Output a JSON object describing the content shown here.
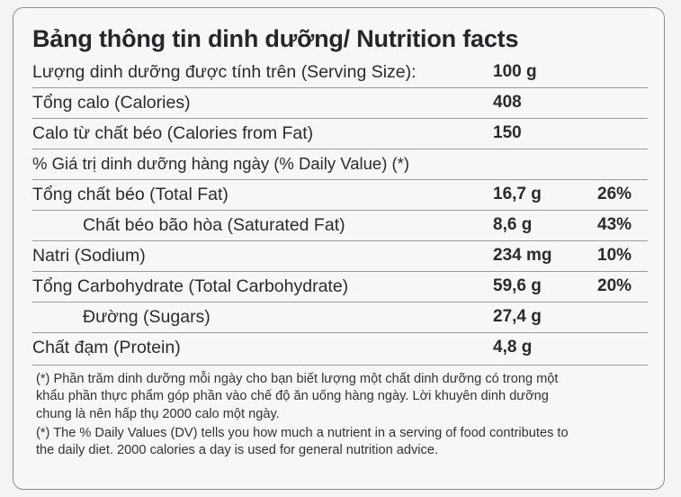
{
  "title": "Bảng thông tin dinh dưỡng/ Nutrition facts",
  "rows": [
    {
      "label": "Lượng dinh dưỡng được tính trên (Serving Size):",
      "value": "100 g",
      "dv": ""
    },
    {
      "label": "Tổng calo (Calories)",
      "value": "408",
      "dv": ""
    },
    {
      "label": "Calo từ chất béo (Calories from Fat)",
      "value": "150",
      "dv": ""
    },
    {
      "label": "% Giá trị dinh dưỡng hàng ngày (% Daily Value) (*)",
      "value": "",
      "dv": ""
    },
    {
      "label": "Tổng chất béo (Total Fat)",
      "value": "16,7 g",
      "dv": "26%"
    },
    {
      "label": "Chất béo bão hòa (Saturated Fat)",
      "value": "8,6 g",
      "dv": "43%"
    },
    {
      "label": "Natri (Sodium)",
      "value": "234 mg",
      "dv": "10%"
    },
    {
      "label": "Tổng Carbohydrate (Total Carbohydrate)",
      "value": "59,6 g",
      "dv": "20%"
    },
    {
      "label": "Đường (Sugars)",
      "value": "27,4 g",
      "dv": ""
    },
    {
      "label": "Chất đạm (Protein)",
      "value": "4,8 g",
      "dv": ""
    }
  ],
  "footnote_vi": [
    "(*) Phần trăm dinh dưỡng mỗi ngày cho bạn biết lượng một chất dinh dưỡng có trong một",
    "khẩu phần thực phẩm góp phần vào chế độ ăn uống hàng ngày. Lời khuyên dinh dưỡng",
    "chung là nên hấp thụ 2000 calo một ngày."
  ],
  "footnote_en": [
    "(*) The % Daily Values (DV) tells you how much a nutrient in a serving of food contributes to",
    "the daily diet. 2000 calories a day is used for general nutrition advice."
  ]
}
